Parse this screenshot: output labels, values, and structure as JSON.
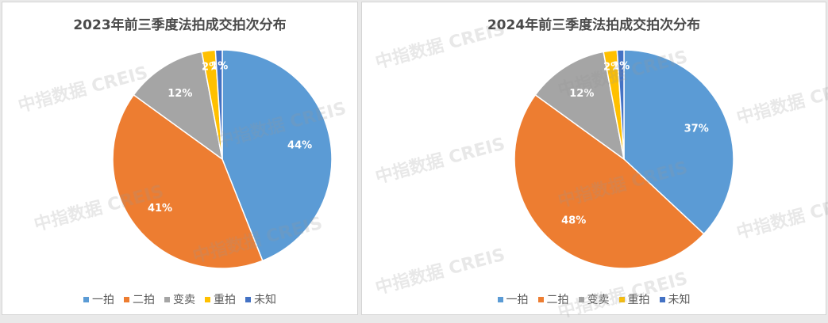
{
  "chart_data": [
    {
      "type": "pie",
      "title": "2023年前三季度法拍成交拍次分布",
      "categories": [
        "一拍",
        "二拍",
        "变卖",
        "重拍",
        "未知"
      ],
      "values": [
        44,
        41,
        12,
        2,
        1
      ],
      "labels": [
        "44%",
        "41%",
        "12%",
        "2%",
        "1%"
      ],
      "legend_position": "bottom"
    },
    {
      "type": "pie",
      "title": "2024年前三季度法拍成交拍次分布",
      "categories": [
        "一拍",
        "二拍",
        "变卖",
        "重拍",
        "未知"
      ],
      "values": [
        37,
        48,
        12,
        2,
        1
      ],
      "labels": [
        "37%",
        "48%",
        "12%",
        "2%",
        "1%"
      ],
      "legend_position": "bottom"
    }
  ],
  "colors": [
    "#5b9bd5",
    "#ed7d31",
    "#a5a5a5",
    "#ffc000",
    "#4472c4"
  ],
  "watermark": "中指数据 CREIS"
}
